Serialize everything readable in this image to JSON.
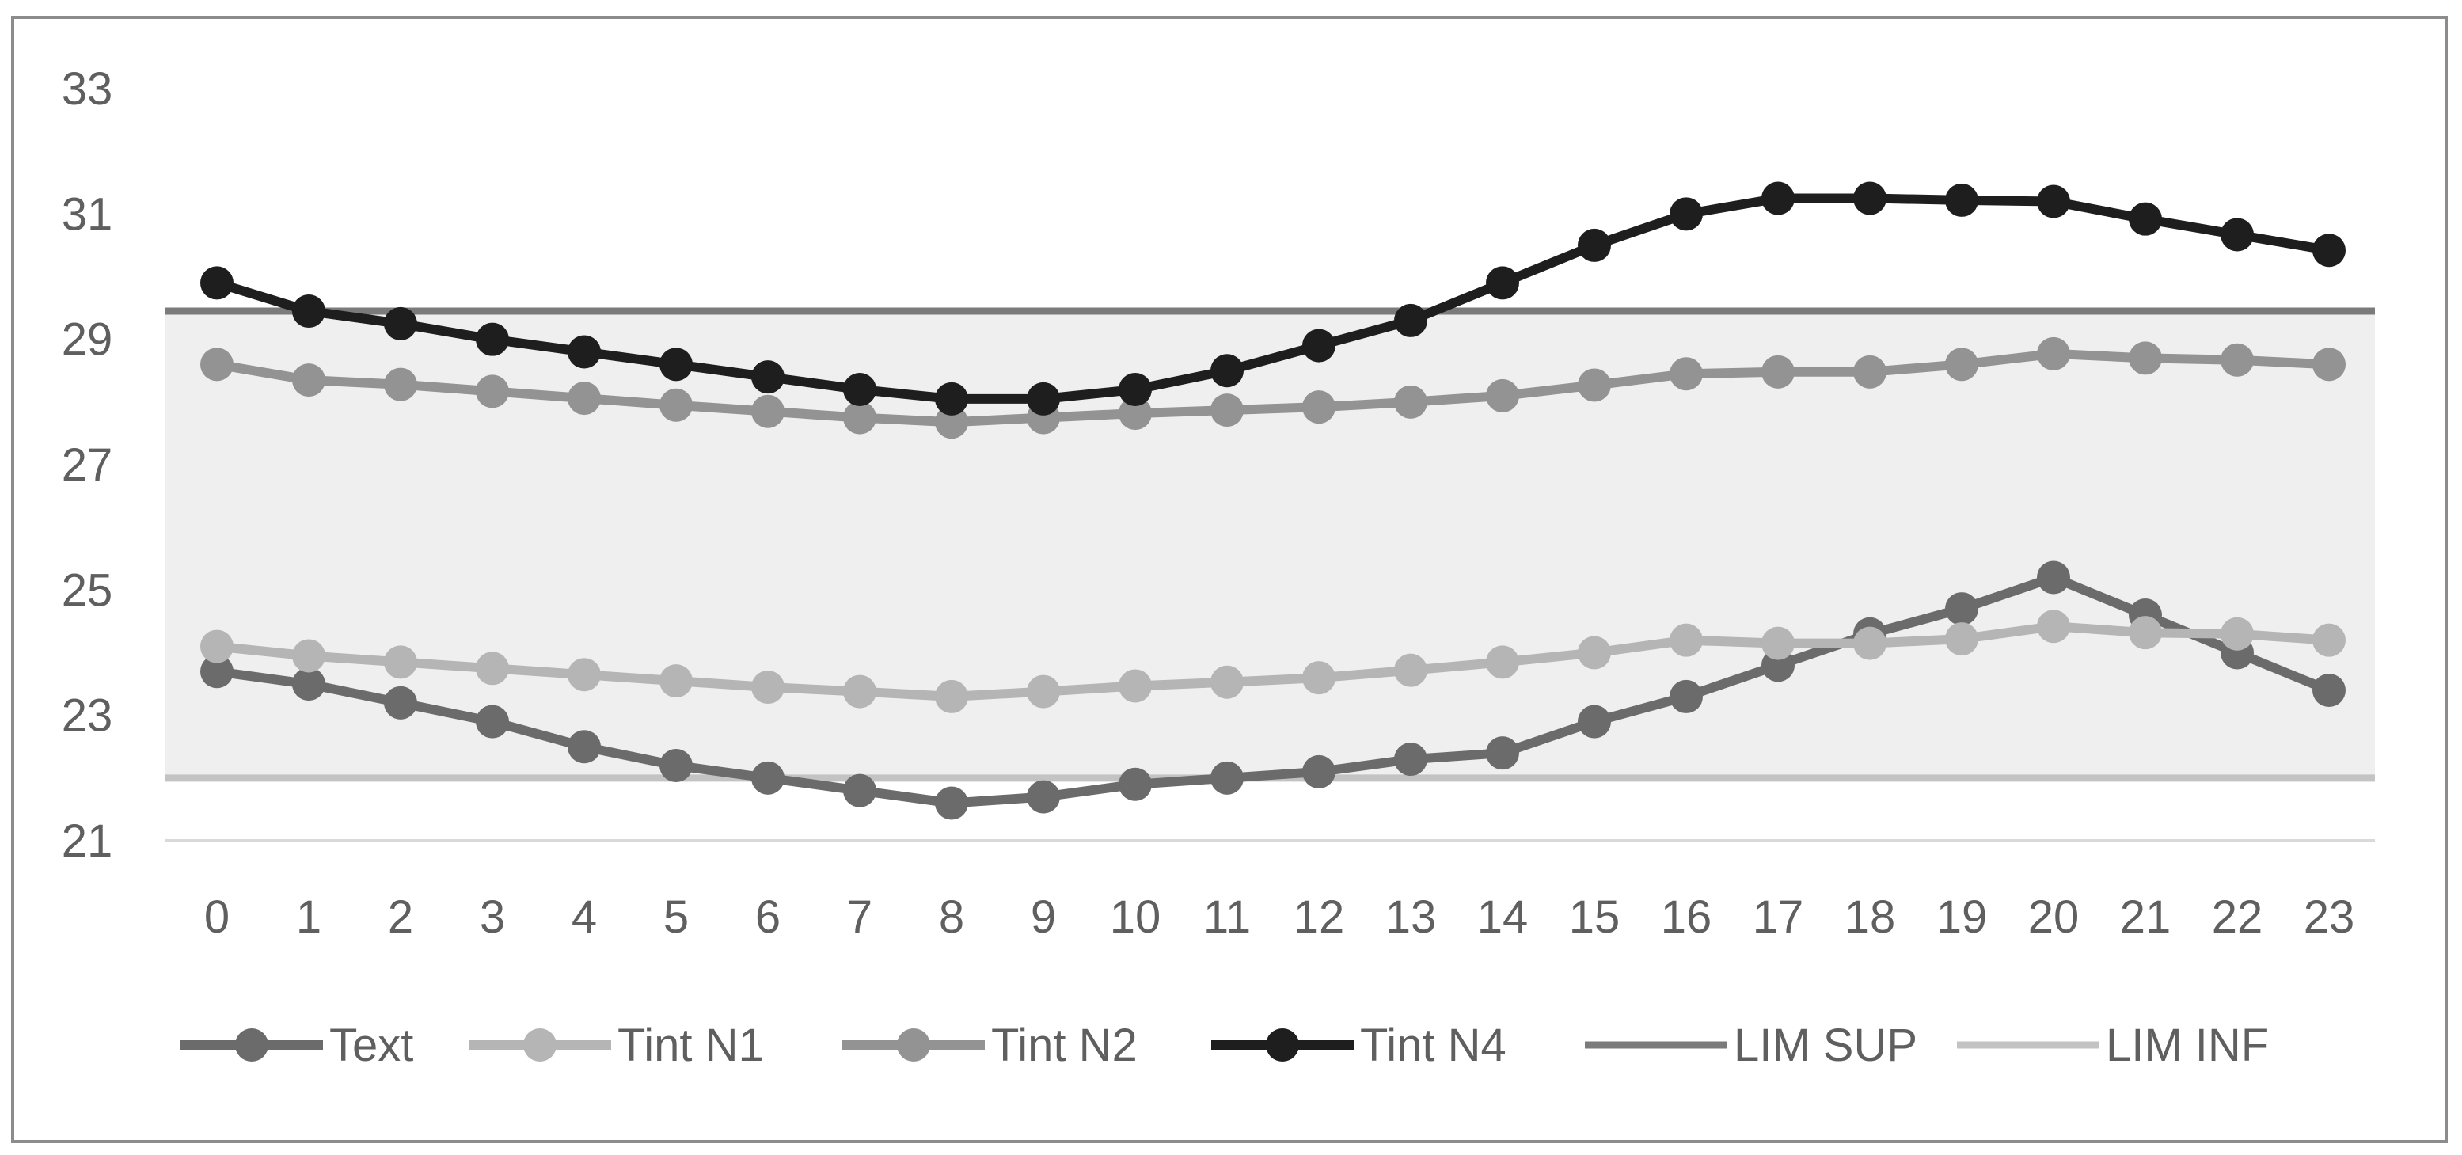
{
  "chart_data": {
    "type": "line",
    "title": "",
    "xlabel": "",
    "ylabel": "",
    "x": [
      0,
      1,
      2,
      3,
      4,
      5,
      6,
      7,
      8,
      9,
      10,
      11,
      12,
      13,
      14,
      15,
      16,
      17,
      18,
      19,
      20,
      21,
      22,
      23
    ],
    "ylim": [
      21,
      33
    ],
    "yticks": [
      21,
      23,
      25,
      27,
      29,
      31,
      33
    ],
    "grid": false,
    "legend_position": "bottom",
    "comfort_band": {
      "from": 22,
      "to": 29.45,
      "color": "#efefef"
    },
    "series": [
      {
        "name": "Text",
        "color": "#6b6b6b",
        "marker": true,
        "values": [
          23.7,
          23.5,
          23.2,
          22.9,
          22.5,
          22.2,
          22.0,
          21.8,
          21.6,
          21.7,
          21.9,
          22.0,
          22.1,
          22.3,
          22.4,
          22.9,
          23.3,
          23.8,
          24.3,
          24.7,
          25.2,
          24.6,
          24.0,
          23.4
        ]
      },
      {
        "name": "Tint N1",
        "color": "#b5b5b5",
        "marker": true,
        "values": [
          24.1,
          23.95,
          23.85,
          23.75,
          23.65,
          23.55,
          23.45,
          23.38,
          23.3,
          23.38,
          23.47,
          23.53,
          23.6,
          23.72,
          23.85,
          24.0,
          24.2,
          24.15,
          24.15,
          24.22,
          24.42,
          24.32,
          24.3,
          24.2
        ]
      },
      {
        "name": "Tint N2",
        "color": "#939393",
        "marker": true,
        "values": [
          28.6,
          28.35,
          28.28,
          28.17,
          28.06,
          27.95,
          27.85,
          27.75,
          27.68,
          27.75,
          27.82,
          27.87,
          27.92,
          28.0,
          28.1,
          28.27,
          28.45,
          28.48,
          28.48,
          28.6,
          28.77,
          28.7,
          28.67,
          28.6
        ]
      },
      {
        "name": "Tint N4",
        "color": "#1e1e1e",
        "marker": true,
        "values": [
          29.9,
          29.45,
          29.25,
          29.0,
          28.8,
          28.6,
          28.4,
          28.2,
          28.05,
          28.05,
          28.2,
          28.5,
          28.9,
          29.3,
          29.9,
          30.5,
          31.0,
          31.25,
          31.25,
          31.22,
          31.2,
          30.92,
          30.67,
          30.42
        ]
      },
      {
        "name": "LIM SUP",
        "color": "#7b7b7b",
        "marker": false,
        "values": [
          29.45,
          29.45,
          29.45,
          29.45,
          29.45,
          29.45,
          29.45,
          29.45,
          29.45,
          29.45,
          29.45,
          29.45,
          29.45,
          29.45,
          29.45,
          29.45,
          29.45,
          29.45,
          29.45,
          29.45,
          29.45,
          29.45,
          29.45,
          29.45
        ]
      },
      {
        "name": "LIM INF",
        "color": "#c3c3c3",
        "marker": false,
        "values": [
          22,
          22,
          22,
          22,
          22,
          22,
          22,
          22,
          22,
          22,
          22,
          22,
          22,
          22,
          22,
          22,
          22,
          22,
          22,
          22,
          22,
          22,
          22,
          22
        ]
      }
    ]
  }
}
